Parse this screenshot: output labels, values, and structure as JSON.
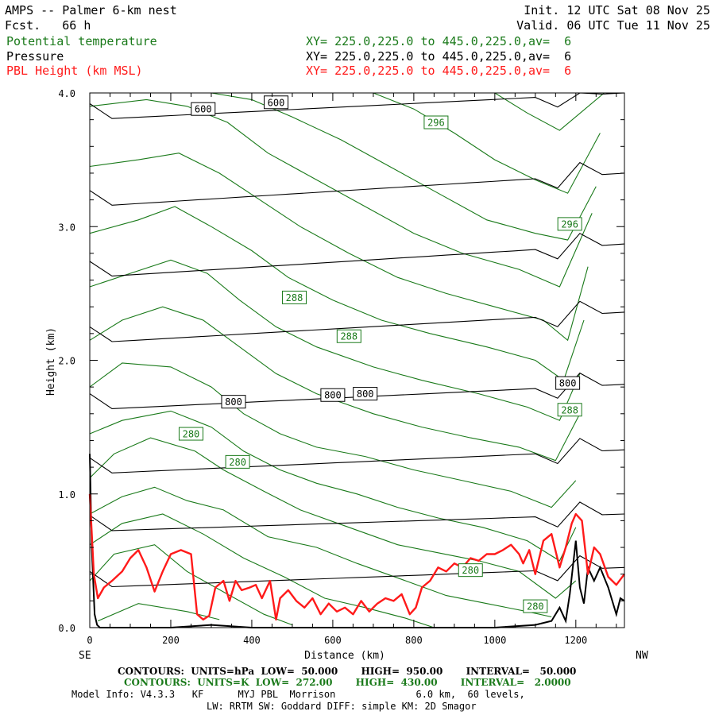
{
  "header": {
    "title": "AMPS -- Palmer 6-km nest",
    "fcst_label": "Fcst.",
    "fcst_value": "66 h",
    "init": "Init. 12 UTC Sat 08 Nov 25",
    "valid": "Valid. 06 UTC Tue 11 Nov 25",
    "fields": [
      {
        "name": "Potential temperature",
        "xy": "XY= 225.0,225.0 to 445.0,225.0,av=  6",
        "color": "#1a7a1a"
      },
      {
        "name": "Pressure",
        "xy": "XY= 225.0,225.0 to 445.0,225.0,av=  6",
        "color": "#000000"
      },
      {
        "name": "PBL Height (km MSL)",
        "xy": "XY= 225.0,225.0 to 445.0,225.0,av=  6",
        "color": "#ff1a1a"
      }
    ]
  },
  "chart_data": {
    "type": "line",
    "title": "AMPS -- Palmer 6-km nest",
    "xlabel": "Distance (km)",
    "ylabel": "Height (km)",
    "xlim": [
      0,
      1320
    ],
    "ylim": [
      0,
      4.0
    ],
    "x_ticks": [
      "0",
      "200",
      "400",
      "600",
      "800",
      "1000",
      "1200"
    ],
    "x_tick_values": [
      0,
      200,
      400,
      600,
      800,
      1000,
      1200
    ],
    "y_ticks": [
      "0.0",
      "1.0",
      "2.0",
      "3.0",
      "4.0"
    ],
    "y_tick_values": [
      0,
      1,
      2,
      3,
      4
    ],
    "left_end_label": "SE",
    "right_end_label": "NW",
    "pressure_contours": {
      "units": "hPa",
      "color": "#000000",
      "lines": [
        {
          "level": 950,
          "y0": 0.3,
          "y1": 0.45
        },
        {
          "level": 900,
          "y0": 0.72,
          "y1": 0.85
        },
        {
          "level": 850,
          "y0": 1.15,
          "y1": 1.33
        },
        {
          "level": 800,
          "y0": 1.63,
          "y1": 1.82
        },
        {
          "level": 750,
          "y0": 2.13,
          "y1": 2.36
        },
        {
          "level": 700,
          "y0": 2.62,
          "y1": 2.87
        },
        {
          "level": 650,
          "y0": 3.15,
          "y1": 3.4
        },
        {
          "level": 600,
          "y0": 3.8,
          "y1": 4.0
        }
      ],
      "labels": [
        {
          "text": "600",
          "x": 280,
          "y": 3.88
        },
        {
          "text": "600",
          "x": 460,
          "y": 3.93
        },
        {
          "text": "800",
          "x": 355,
          "y": 1.69
        },
        {
          "text": "800",
          "x": 600,
          "y": 1.74
        },
        {
          "text": "800",
          "x": 680,
          "y": 1.75
        },
        {
          "text": "800",
          "x": 1180,
          "y": 1.83
        }
      ]
    },
    "theta_contours": {
      "units": "K",
      "color": "#1a7a1a",
      "lines": [
        {
          "level": 272,
          "pts": [
            [
              20,
              0.05
            ],
            [
              120,
              0.18
            ],
            [
              240,
              0.12
            ],
            [
              320,
              0.06
            ]
          ]
        },
        {
          "level": 274,
          "pts": [
            [
              0,
              0.35
            ],
            [
              60,
              0.55
            ],
            [
              160,
              0.62
            ],
            [
              240,
              0.42
            ],
            [
              340,
              0.25
            ],
            [
              430,
              0.1
            ],
            [
              500,
              0.02
            ]
          ]
        },
        {
          "level": 276,
          "pts": [
            [
              0,
              0.62
            ],
            [
              80,
              0.78
            ],
            [
              180,
              0.85
            ],
            [
              280,
              0.7
            ],
            [
              380,
              0.52
            ],
            [
              480,
              0.38
            ],
            [
              580,
              0.22
            ],
            [
              680,
              0.15
            ],
            [
              780,
              0.07
            ],
            [
              850,
              0.0
            ]
          ]
        },
        {
          "level": 278,
          "pts": [
            [
              0,
              0.85
            ],
            [
              80,
              0.98
            ],
            [
              160,
              1.05
            ],
            [
              240,
              0.95
            ],
            [
              330,
              0.88
            ],
            [
              440,
              0.68
            ],
            [
              560,
              0.6
            ],
            [
              660,
              0.48
            ],
            [
              780,
              0.35
            ],
            [
              880,
              0.24
            ],
            [
              980,
              0.18
            ],
            [
              1080,
              0.12
            ],
            [
              1140,
              0.08
            ]
          ]
        },
        {
          "level": 280,
          "pts": [
            [
              0,
              1.12
            ],
            [
              60,
              1.3
            ],
            [
              150,
              1.42
            ],
            [
              260,
              1.32
            ],
            [
              330,
              1.18
            ],
            [
              430,
              1.02
            ],
            [
              520,
              0.88
            ],
            [
              640,
              0.75
            ],
            [
              760,
              0.62
            ],
            [
              860,
              0.56
            ],
            [
              960,
              0.5
            ],
            [
              1060,
              0.42
            ],
            [
              1150,
              0.22
            ],
            [
              1200,
              0.35
            ]
          ]
        },
        {
          "level": 282,
          "pts": [
            [
              0,
              1.45
            ],
            [
              80,
              1.55
            ],
            [
              200,
              1.62
            ],
            [
              300,
              1.5
            ],
            [
              380,
              1.32
            ],
            [
              470,
              1.18
            ],
            [
              560,
              1.08
            ],
            [
              660,
              1.0
            ],
            [
              760,
              0.9
            ],
            [
              860,
              0.82
            ],
            [
              970,
              0.75
            ],
            [
              1080,
              0.65
            ],
            [
              1160,
              0.5
            ],
            [
              1200,
              0.75
            ]
          ]
        },
        {
          "level": 284,
          "pts": [
            [
              0,
              1.8
            ],
            [
              80,
              1.98
            ],
            [
              200,
              1.95
            ],
            [
              300,
              1.8
            ],
            [
              380,
              1.6
            ],
            [
              470,
              1.45
            ],
            [
              560,
              1.35
            ],
            [
              680,
              1.28
            ],
            [
              800,
              1.18
            ],
            [
              920,
              1.1
            ],
            [
              1040,
              1.02
            ],
            [
              1140,
              0.9
            ],
            [
              1200,
              1.1
            ]
          ]
        },
        {
          "level": 286,
          "pts": [
            [
              0,
              2.15
            ],
            [
              80,
              2.3
            ],
            [
              180,
              2.4
            ],
            [
              280,
              2.3
            ],
            [
              370,
              2.1
            ],
            [
              460,
              1.9
            ],
            [
              560,
              1.75
            ],
            [
              700,
              1.6
            ],
            [
              820,
              1.5
            ],
            [
              940,
              1.42
            ],
            [
              1060,
              1.35
            ],
            [
              1150,
              1.25
            ],
            [
              1210,
              1.6
            ]
          ]
        },
        {
          "level": 288,
          "pts": [
            [
              0,
              2.55
            ],
            [
              100,
              2.65
            ],
            [
              200,
              2.75
            ],
            [
              290,
              2.65
            ],
            [
              370,
              2.45
            ],
            [
              460,
              2.25
            ],
            [
              560,
              2.1
            ],
            [
              700,
              1.95
            ],
            [
              820,
              1.85
            ],
            [
              960,
              1.75
            ],
            [
              1080,
              1.65
            ],
            [
              1160,
              1.55
            ],
            [
              1210,
              1.9
            ]
          ]
        },
        {
          "level": 290,
          "pts": [
            [
              0,
              2.95
            ],
            [
              120,
              3.05
            ],
            [
              210,
              3.15
            ],
            [
              300,
              3.0
            ],
            [
              400,
              2.82
            ],
            [
              490,
              2.62
            ],
            [
              600,
              2.45
            ],
            [
              720,
              2.3
            ],
            [
              840,
              2.2
            ],
            [
              980,
              2.1
            ],
            [
              1100,
              2.0
            ],
            [
              1170,
              1.85
            ],
            [
              1220,
              2.3
            ]
          ]
        },
        {
          "level": 292,
          "pts": [
            [
              0,
              3.45
            ],
            [
              120,
              3.5
            ],
            [
              220,
              3.55
            ],
            [
              320,
              3.4
            ],
            [
              420,
              3.2
            ],
            [
              520,
              3.0
            ],
            [
              640,
              2.8
            ],
            [
              760,
              2.62
            ],
            [
              880,
              2.5
            ],
            [
              1000,
              2.4
            ],
            [
              1120,
              2.3
            ],
            [
              1180,
              2.15
            ],
            [
              1230,
              2.7
            ]
          ]
        },
        {
          "level": 294,
          "pts": [
            [
              0,
              3.9
            ],
            [
              140,
              3.95
            ],
            [
              240,
              3.9
            ],
            [
              340,
              3.78
            ],
            [
              440,
              3.55
            ],
            [
              560,
              3.35
            ],
            [
              680,
              3.15
            ],
            [
              800,
              2.95
            ],
            [
              920,
              2.8
            ],
            [
              1060,
              2.68
            ],
            [
              1160,
              2.55
            ],
            [
              1240,
              3.1
            ]
          ]
        },
        {
          "level": 296,
          "pts": [
            [
              300,
              4.0
            ],
            [
              400,
              3.95
            ],
            [
              500,
              3.82
            ],
            [
              620,
              3.65
            ],
            [
              740,
              3.45
            ],
            [
              860,
              3.25
            ],
            [
              980,
              3.05
            ],
            [
              1100,
              2.95
            ],
            [
              1180,
              2.9
            ],
            [
              1250,
              3.3
            ]
          ]
        },
        {
          "level": 298,
          "pts": [
            [
              700,
              4.0
            ],
            [
              800,
              3.88
            ],
            [
              900,
              3.7
            ],
            [
              1000,
              3.5
            ],
            [
              1100,
              3.35
            ],
            [
              1180,
              3.25
            ],
            [
              1260,
              3.7
            ]
          ]
        },
        {
          "level": 300,
          "pts": [
            [
              1000,
              4.0
            ],
            [
              1080,
              3.85
            ],
            [
              1160,
              3.72
            ],
            [
              1270,
              4.0
            ]
          ]
        }
      ],
      "labels": [
        {
          "text": "296",
          "x": 855,
          "y": 3.78
        },
        {
          "text": "296",
          "x": 1185,
          "y": 3.02
        },
        {
          "text": "288",
          "x": 505,
          "y": 2.47
        },
        {
          "text": "288",
          "x": 640,
          "y": 2.18
        },
        {
          "text": "288",
          "x": 1185,
          "y": 1.63
        },
        {
          "text": "280",
          "x": 250,
          "y": 1.45
        },
        {
          "text": "280",
          "x": 365,
          "y": 1.24
        },
        {
          "text": "280",
          "x": 940,
          "y": 0.43
        },
        {
          "text": "280",
          "x": 1100,
          "y": 0.16
        }
      ]
    },
    "pbl_height": {
      "name": "PBL Height (km MSL)",
      "color": "#ff1a1a",
      "x": [
        0,
        10,
        20,
        35,
        55,
        80,
        100,
        120,
        140,
        160,
        180,
        200,
        225,
        250,
        265,
        280,
        295,
        310,
        330,
        345,
        360,
        375,
        395,
        410,
        425,
        445,
        460,
        470,
        490,
        510,
        530,
        550,
        570,
        590,
        610,
        630,
        650,
        670,
        690,
        710,
        730,
        750,
        770,
        790,
        805,
        820,
        840,
        860,
        880,
        900,
        920,
        940,
        960,
        980,
        1000,
        1020,
        1040,
        1060,
        1070,
        1085,
        1100,
        1120,
        1140,
        1160,
        1175,
        1190,
        1200,
        1215,
        1230,
        1245,
        1260,
        1280,
        1300,
        1320
      ],
      "y": [
        1.0,
        0.4,
        0.22,
        0.3,
        0.35,
        0.42,
        0.52,
        0.58,
        0.45,
        0.27,
        0.42,
        0.55,
        0.58,
        0.55,
        0.1,
        0.06,
        0.09,
        0.3,
        0.35,
        0.2,
        0.35,
        0.28,
        0.3,
        0.32,
        0.22,
        0.35,
        0.06,
        0.22,
        0.28,
        0.2,
        0.15,
        0.22,
        0.1,
        0.18,
        0.12,
        0.15,
        0.1,
        0.2,
        0.12,
        0.18,
        0.22,
        0.2,
        0.25,
        0.1,
        0.15,
        0.3,
        0.35,
        0.45,
        0.42,
        0.48,
        0.45,
        0.52,
        0.5,
        0.55,
        0.55,
        0.58,
        0.62,
        0.55,
        0.48,
        0.58,
        0.4,
        0.65,
        0.7,
        0.45,
        0.6,
        0.78,
        0.85,
        0.8,
        0.4,
        0.6,
        0.55,
        0.38,
        0.32,
        0.4
      ]
    },
    "terrain": {
      "color": "#000000",
      "x": [
        0,
        5,
        12,
        18,
        25,
        100,
        200,
        300,
        400,
        600,
        800,
        1000,
        1100,
        1140,
        1160,
        1175,
        1185,
        1200,
        1210,
        1220,
        1230,
        1245,
        1260,
        1280,
        1300,
        1310,
        1320
      ],
      "y": [
        1.3,
        0.6,
        0.1,
        0.02,
        0.0,
        0.0,
        0.0,
        0.02,
        0.0,
        0.0,
        0.0,
        0.0,
        0.02,
        0.05,
        0.15,
        0.05,
        0.25,
        0.65,
        0.3,
        0.18,
        0.45,
        0.35,
        0.45,
        0.3,
        0.1,
        0.22,
        0.2
      ]
    }
  },
  "footer": {
    "pressure_line": "CONTOURS:  UNITS=hPa  LOW=  50.000       HIGH=  950.00       INTERVAL=   50.000",
    "theta_line": "CONTOURS:  UNITS=K  LOW=  272.00       HIGH=  430.00       INTERVAL=   2.0000",
    "model_info": "Model Info: V4.3.3   KF      MYJ PBL  Morrison              6.0 km,  60 levels,",
    "physics_info": "LW: RRTM SW: Goddard DIFF: simple KM: 2D Smagor"
  }
}
